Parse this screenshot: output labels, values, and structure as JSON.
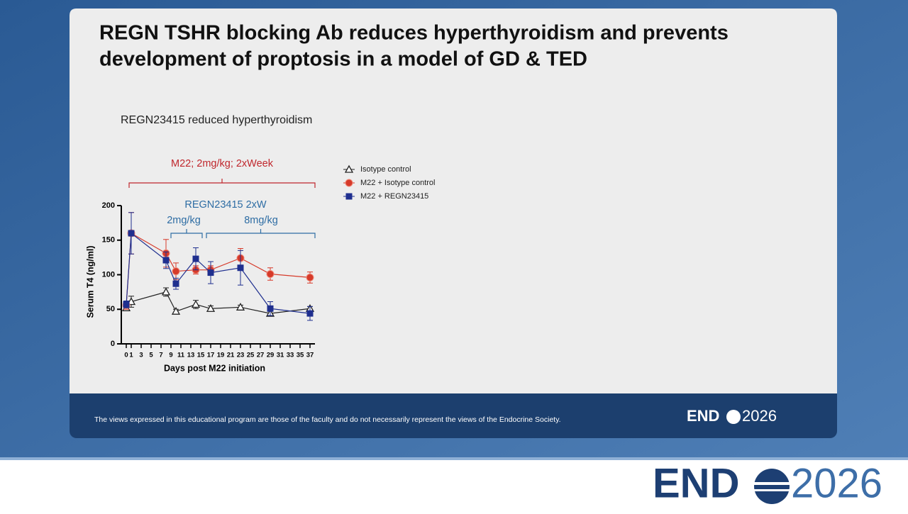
{
  "slide": {
    "title_lines": [
      "REGN TSHR blocking Ab reduces hyperthyroidism and prevents",
      "development of proptosis in a model of GD & TED"
    ],
    "disclaimer": "The views expressed in this educational program are those of the faculty and do not necessarily represent the views of the Endocrine Society.",
    "logo_left": "END",
    "logo_right": "2026"
  },
  "chart_data": {
    "type": "line",
    "title": "REGN23415 reduced hyperthyroidism",
    "x_label": "Days post M22 initiation",
    "y_label": "Serum T4 (ng/ml)",
    "x": [
      0,
      1,
      8,
      10,
      14,
      17,
      23,
      29,
      37
    ],
    "xlim": [
      -1,
      38
    ],
    "xticks": [
      0,
      1,
      3,
      5,
      7,
      9,
      11,
      13,
      15,
      17,
      19,
      21,
      23,
      25,
      27,
      29,
      31,
      33,
      35,
      37
    ],
    "ylim": [
      0,
      200
    ],
    "yticks": [
      0,
      50,
      100,
      150,
      200
    ],
    "series": [
      {
        "name": "Isotype control",
        "color": "#222222",
        "marker": "triangle",
        "values": [
          52,
          61,
          75,
          47,
          57,
          51,
          53,
          44,
          51
        ],
        "errors": [
          4,
          8,
          6,
          3,
          6,
          4,
          3,
          4,
          3
        ]
      },
      {
        "name": "M22 + Isotype control",
        "color": "#d63a2a",
        "marker": "circle",
        "values": [
          56,
          160,
          131,
          105,
          107,
          107,
          124,
          101,
          96
        ],
        "errors": [
          6,
          30,
          20,
          12,
          6,
          6,
          14,
          9,
          8
        ]
      },
      {
        "name": "M22 + REGN23415",
        "color": "#1f2f8f",
        "marker": "square",
        "values": [
          57,
          160,
          121,
          87,
          123,
          103,
          110,
          51,
          44
        ],
        "errors": [
          5,
          30,
          12,
          8,
          16,
          16,
          25,
          10,
          10
        ]
      }
    ],
    "annotations": [
      {
        "text": "M22; 2mg/kg; 2xWeek",
        "color": "#c0272d"
      },
      {
        "text": "REGN23415 2xW",
        "color": "#2e6da4"
      },
      {
        "text": "2mg/kg",
        "color": "#2e6da4"
      },
      {
        "text": "8mg/kg",
        "color": "#2e6da4"
      }
    ]
  }
}
